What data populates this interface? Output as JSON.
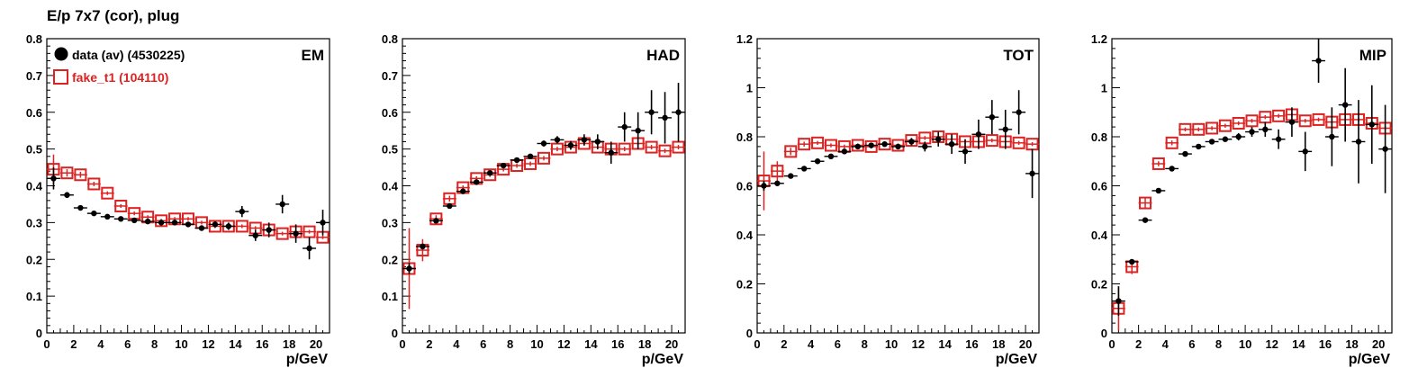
{
  "title": "E/p 7x7 (cor), plug",
  "colors": {
    "data": "#000000",
    "fake": "#dd2222"
  },
  "legend": {
    "data_label": "data (av) (4530225)",
    "fake_label": "fake_t1 (104110)"
  },
  "chart_data": [
    {
      "type": "scatter",
      "panel_label": "EM",
      "xlabel": "p/GeV",
      "xlim": [
        0,
        21
      ],
      "ylim": [
        0,
        0.8
      ],
      "xticks": [
        0,
        2,
        4,
        6,
        8,
        10,
        12,
        14,
        16,
        18,
        20
      ],
      "yticks": [
        0,
        0.1,
        0.2,
        0.3,
        0.4,
        0.5,
        0.6,
        0.7,
        0.8
      ],
      "ytick_labels": [
        "0",
        "0.1",
        "0.2",
        "0.3",
        "0.4",
        "0.5",
        "0.6",
        "0.7",
        "0.8"
      ],
      "series": [
        {
          "name": "data (av) (4530225)",
          "x": [
            0.5,
            1.5,
            2.5,
            3.5,
            4.5,
            5.5,
            6.5,
            7.5,
            8.5,
            9.5,
            10.5,
            11.5,
            12.5,
            13.5,
            14.5,
            15.5,
            16.5,
            17.5,
            18.5,
            19.5,
            20.5
          ],
          "y": [
            0.42,
            0.375,
            0.34,
            0.325,
            0.316,
            0.31,
            0.306,
            0.303,
            0.3,
            0.3,
            0.295,
            0.285,
            0.295,
            0.29,
            0.33,
            0.265,
            0.28,
            0.35,
            0.27,
            0.23,
            0.3
          ],
          "err": [
            0.03,
            0.008,
            0.005,
            0.004,
            0.003,
            0.003,
            0.003,
            0.003,
            0.004,
            0.004,
            0.005,
            0.006,
            0.008,
            0.01,
            0.015,
            0.015,
            0.02,
            0.025,
            0.025,
            0.03,
            0.035
          ]
        },
        {
          "name": "fake_t1 (104110)",
          "x": [
            0.5,
            1.5,
            2.5,
            3.5,
            4.5,
            5.5,
            6.5,
            7.5,
            8.5,
            9.5,
            10.5,
            11.5,
            12.5,
            13.5,
            14.5,
            15.5,
            16.5,
            17.5,
            18.5,
            19.5,
            20.5
          ],
          "y": [
            0.445,
            0.435,
            0.43,
            0.405,
            0.38,
            0.345,
            0.325,
            0.315,
            0.305,
            0.31,
            0.31,
            0.3,
            0.29,
            0.29,
            0.29,
            0.285,
            0.28,
            0.27,
            0.275,
            0.275,
            0.26
          ],
          "err": [
            0.04,
            0.01,
            0.008,
            0.006,
            0.005,
            0.005,
            0.005,
            0.005,
            0.005,
            0.005,
            0.005,
            0.005,
            0.005,
            0.005,
            0.005,
            0.005,
            0.005,
            0.005,
            0.005,
            0.005,
            0.005
          ]
        }
      ]
    },
    {
      "type": "scatter",
      "panel_label": "HAD",
      "xlabel": "p/GeV",
      "xlim": [
        0,
        21
      ],
      "ylim": [
        0,
        0.8
      ],
      "xticks": [
        0,
        2,
        4,
        6,
        8,
        10,
        12,
        14,
        16,
        18,
        20
      ],
      "yticks": [
        0,
        0.1,
        0.2,
        0.3,
        0.4,
        0.5,
        0.6,
        0.7,
        0.8
      ],
      "ytick_labels": [
        "0",
        "0.1",
        "0.2",
        "0.3",
        "0.4",
        "0.5",
        "0.6",
        "0.7",
        "0.8"
      ],
      "series": [
        {
          "name": "data (av) (4530225)",
          "x": [
            0.5,
            1.5,
            2.5,
            3.5,
            4.5,
            5.5,
            6.5,
            7.5,
            8.5,
            9.5,
            10.5,
            11.5,
            12.5,
            13.5,
            14.5,
            15.5,
            16.5,
            17.5,
            18.5,
            19.5,
            20.5
          ],
          "y": [
            0.175,
            0.235,
            0.305,
            0.345,
            0.385,
            0.41,
            0.435,
            0.455,
            0.47,
            0.48,
            0.515,
            0.525,
            0.51,
            0.525,
            0.52,
            0.49,
            0.56,
            0.55,
            0.6,
            0.585,
            0.6
          ],
          "err": [
            0.015,
            0.008,
            0.005,
            0.004,
            0.004,
            0.004,
            0.004,
            0.005,
            0.005,
            0.006,
            0.008,
            0.01,
            0.012,
            0.015,
            0.02,
            0.03,
            0.04,
            0.05,
            0.06,
            0.07,
            0.08
          ]
        },
        {
          "name": "fake_t1 (104110)",
          "x": [
            0.5,
            1.5,
            2.5,
            3.5,
            4.5,
            5.5,
            6.5,
            7.5,
            8.5,
            9.5,
            10.5,
            11.5,
            12.5,
            13.5,
            14.5,
            15.5,
            16.5,
            17.5,
            18.5,
            19.5,
            20.5
          ],
          "y": [
            0.175,
            0.225,
            0.31,
            0.365,
            0.395,
            0.42,
            0.43,
            0.445,
            0.455,
            0.46,
            0.475,
            0.5,
            0.505,
            0.515,
            0.505,
            0.5,
            0.5,
            0.515,
            0.505,
            0.495,
            0.505
          ],
          "err": [
            0.11,
            0.03,
            0.01,
            0.008,
            0.006,
            0.006,
            0.006,
            0.006,
            0.006,
            0.006,
            0.006,
            0.006,
            0.006,
            0.006,
            0.006,
            0.006,
            0.006,
            0.006,
            0.006,
            0.006,
            0.006
          ]
        }
      ]
    },
    {
      "type": "scatter",
      "panel_label": "TOT",
      "xlabel": "p/GeV",
      "xlim": [
        0,
        21
      ],
      "ylim": [
        0,
        1.2
      ],
      "xticks": [
        0,
        2,
        4,
        6,
        8,
        10,
        12,
        14,
        16,
        18,
        20
      ],
      "yticks": [
        0,
        0.2,
        0.4,
        0.6,
        0.8,
        1.0,
        1.2
      ],
      "ytick_labels": [
        "0",
        "0.2",
        "0.4",
        "0.6",
        "0.8",
        "1",
        "1.2"
      ],
      "series": [
        {
          "name": "data (av) (4530225)",
          "x": [
            0.5,
            1.5,
            2.5,
            3.5,
            4.5,
            5.5,
            6.5,
            7.5,
            8.5,
            9.5,
            10.5,
            11.5,
            12.5,
            13.5,
            14.5,
            15.5,
            16.5,
            17.5,
            18.5,
            19.5,
            20.5
          ],
          "y": [
            0.6,
            0.61,
            0.64,
            0.67,
            0.7,
            0.72,
            0.74,
            0.76,
            0.765,
            0.77,
            0.76,
            0.78,
            0.76,
            0.79,
            0.77,
            0.74,
            0.81,
            0.88,
            0.83,
            0.9,
            0.65
          ],
          "err": [
            0.02,
            0.008,
            0.006,
            0.005,
            0.005,
            0.005,
            0.005,
            0.006,
            0.006,
            0.008,
            0.01,
            0.015,
            0.02,
            0.03,
            0.04,
            0.05,
            0.06,
            0.07,
            0.08,
            0.09,
            0.1
          ]
        },
        {
          "name": "fake_t1 (104110)",
          "x": [
            0.5,
            1.5,
            2.5,
            3.5,
            4.5,
            5.5,
            6.5,
            7.5,
            8.5,
            9.5,
            10.5,
            11.5,
            12.5,
            13.5,
            14.5,
            15.5,
            16.5,
            17.5,
            18.5,
            19.5,
            20.5
          ],
          "y": [
            0.62,
            0.66,
            0.74,
            0.77,
            0.775,
            0.765,
            0.76,
            0.765,
            0.76,
            0.77,
            0.765,
            0.785,
            0.795,
            0.8,
            0.79,
            0.78,
            0.78,
            0.785,
            0.78,
            0.775,
            0.77
          ],
          "err": [
            0.12,
            0.04,
            0.015,
            0.01,
            0.008,
            0.008,
            0.008,
            0.008,
            0.008,
            0.008,
            0.008,
            0.008,
            0.008,
            0.008,
            0.008,
            0.008,
            0.008,
            0.008,
            0.008,
            0.008,
            0.008
          ]
        }
      ]
    },
    {
      "type": "scatter",
      "panel_label": "MIP",
      "xlabel": "p/GeV",
      "xlim": [
        0,
        21
      ],
      "ylim": [
        0,
        1.2
      ],
      "xticks": [
        0,
        2,
        4,
        6,
        8,
        10,
        12,
        14,
        16,
        18,
        20
      ],
      "yticks": [
        0,
        0.2,
        0.4,
        0.6,
        0.8,
        1.0,
        1.2
      ],
      "ytick_labels": [
        "0",
        "0.2",
        "0.4",
        "0.6",
        "0.8",
        "1",
        "1.2"
      ],
      "series": [
        {
          "name": "data (av) (4530225)",
          "x": [
            0.5,
            1.5,
            2.5,
            3.5,
            4.5,
            5.5,
            6.5,
            7.5,
            8.5,
            9.5,
            10.5,
            11.5,
            12.5,
            13.5,
            14.5,
            15.5,
            16.5,
            17.5,
            18.5,
            19.5,
            20.5
          ],
          "y": [
            0.13,
            0.29,
            0.46,
            0.58,
            0.67,
            0.73,
            0.76,
            0.78,
            0.79,
            0.8,
            0.82,
            0.83,
            0.79,
            0.86,
            0.74,
            1.11,
            0.8,
            0.93,
            0.78,
            0.85,
            0.75
          ],
          "err": [
            0.06,
            0.01,
            0.006,
            0.005,
            0.005,
            0.005,
            0.006,
            0.008,
            0.01,
            0.015,
            0.02,
            0.03,
            0.04,
            0.06,
            0.08,
            0.09,
            0.12,
            0.15,
            0.17,
            0.16,
            0.18
          ]
        },
        {
          "name": "fake_t1 (104110)",
          "x": [
            0.5,
            1.5,
            2.5,
            3.5,
            4.5,
            5.5,
            6.5,
            7.5,
            8.5,
            9.5,
            10.5,
            11.5,
            12.5,
            13.5,
            14.5,
            15.5,
            16.5,
            17.5,
            18.5,
            19.5,
            20.5
          ],
          "y": [
            0.1,
            0.27,
            0.53,
            0.69,
            0.775,
            0.83,
            0.83,
            0.835,
            0.845,
            0.855,
            0.865,
            0.88,
            0.885,
            0.89,
            0.865,
            0.87,
            0.86,
            0.87,
            0.87,
            0.855,
            0.835
          ],
          "err": [
            0.09,
            0.03,
            0.02,
            0.01,
            0.01,
            0.008,
            0.008,
            0.008,
            0.008,
            0.008,
            0.008,
            0.008,
            0.008,
            0.008,
            0.008,
            0.008,
            0.008,
            0.008,
            0.008,
            0.008,
            0.008
          ]
        }
      ]
    }
  ]
}
